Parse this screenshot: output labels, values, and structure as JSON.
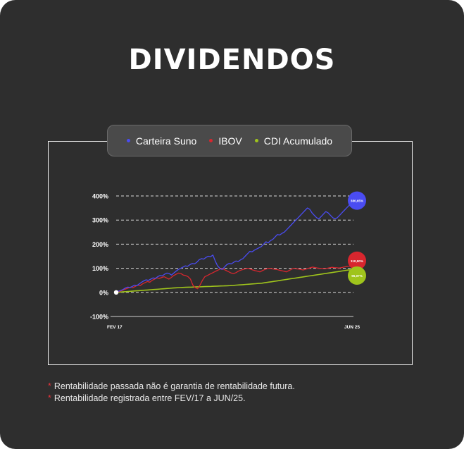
{
  "title": "DIVIDENDOS",
  "chart_data": {
    "type": "line",
    "title": "",
    "xlabel": "",
    "ylabel": "",
    "ylim": [
      -100,
      400
    ],
    "y_ticks": [
      {
        "value": 400,
        "label": "400%"
      },
      {
        "value": 300,
        "label": "300%"
      },
      {
        "value": 200,
        "label": "200%"
      },
      {
        "value": 100,
        "label": "100%"
      },
      {
        "value": 0,
        "label": "0%"
      },
      {
        "value": -100,
        "label": "-100%"
      }
    ],
    "x_labels": {
      "start": "FEV 17",
      "end": "JUN 25"
    },
    "grid": true,
    "legend_position": "top-center",
    "series": [
      {
        "name": "Carteira Suno",
        "color": "#4a4cf2",
        "end_label": "380,65%",
        "values": [
          0,
          5,
          8,
          12,
          18,
          22,
          20,
          25,
          30,
          28,
          35,
          42,
          48,
          52,
          50,
          55,
          60,
          58,
          65,
          70,
          68,
          75,
          80,
          78,
          72,
          80,
          88,
          95,
          100,
          105,
          110,
          108,
          115,
          120,
          118,
          125,
          135,
          140,
          138,
          145,
          150,
          148,
          155,
          130,
          110,
          100,
          95,
          105,
          115,
          120,
          118,
          125,
          130,
          128,
          135,
          140,
          150,
          160,
          170,
          168,
          175,
          180,
          185,
          190,
          200,
          210,
          205,
          215,
          220,
          230,
          240,
          238,
          245,
          250,
          260,
          270,
          280,
          290,
          300,
          310,
          320,
          330,
          340,
          350,
          345,
          330,
          320,
          310,
          305,
          315,
          325,
          335,
          330,
          320,
          310,
          305,
          310,
          320,
          330,
          340,
          350,
          360,
          370,
          380.65
        ]
      },
      {
        "name": "IBOV",
        "color": "#d8262e",
        "end_label": "110,90%",
        "values": [
          0,
          3,
          6,
          10,
          14,
          18,
          22,
          20,
          25,
          30,
          28,
          35,
          40,
          45,
          42,
          50,
          55,
          60,
          58,
          62,
          65,
          60,
          55,
          62,
          70,
          75,
          80,
          78,
          72,
          70,
          65,
          55,
          30,
          20,
          15,
          30,
          50,
          65,
          70,
          75,
          80,
          85,
          90,
          95,
          100,
          95,
          90,
          85,
          80,
          78,
          82,
          88,
          92,
          95,
          98,
          100,
          97,
          93,
          90,
          88,
          85,
          90,
          95,
          98,
          100,
          98,
          96,
          95,
          92,
          90,
          88,
          85,
          90,
          95,
          100,
          98,
          97,
          95,
          93,
          96,
          99,
          102,
          105,
          103,
          101,
          100,
          99,
          98,
          100,
          102,
          104,
          103,
          102,
          101,
          103,
          105,
          107,
          108,
          109,
          110.9
        ]
      },
      {
        "name": "CDI Acumulado",
        "color": "#9fc41c",
        "end_label": "96,07%",
        "values": [
          0,
          1,
          2,
          3,
          4,
          5,
          6,
          7,
          8,
          9,
          10,
          11,
          12,
          13,
          14,
          15,
          16,
          17,
          18,
          19,
          20,
          20.5,
          21,
          21.5,
          22,
          22.5,
          23,
          23.5,
          24,
          24.5,
          25,
          25.5,
          26,
          26.5,
          27,
          27.5,
          28,
          29,
          30,
          31,
          32,
          33,
          34,
          35,
          36,
          37,
          38,
          40,
          42,
          44,
          46,
          48,
          50,
          52,
          54,
          56,
          58,
          60,
          62,
          64,
          66,
          68,
          70,
          72,
          74,
          76,
          78,
          80,
          82,
          84,
          86,
          88,
          90,
          92,
          94,
          96.07
        ]
      }
    ]
  },
  "notes": [
    {
      "marker": "*",
      "text": "Rentabilidade passada não é garantia de rentabilidade futura."
    },
    {
      "marker": "*",
      "text": "Rentabilidade registrada entre FEV/17 a JUN/25."
    }
  ]
}
